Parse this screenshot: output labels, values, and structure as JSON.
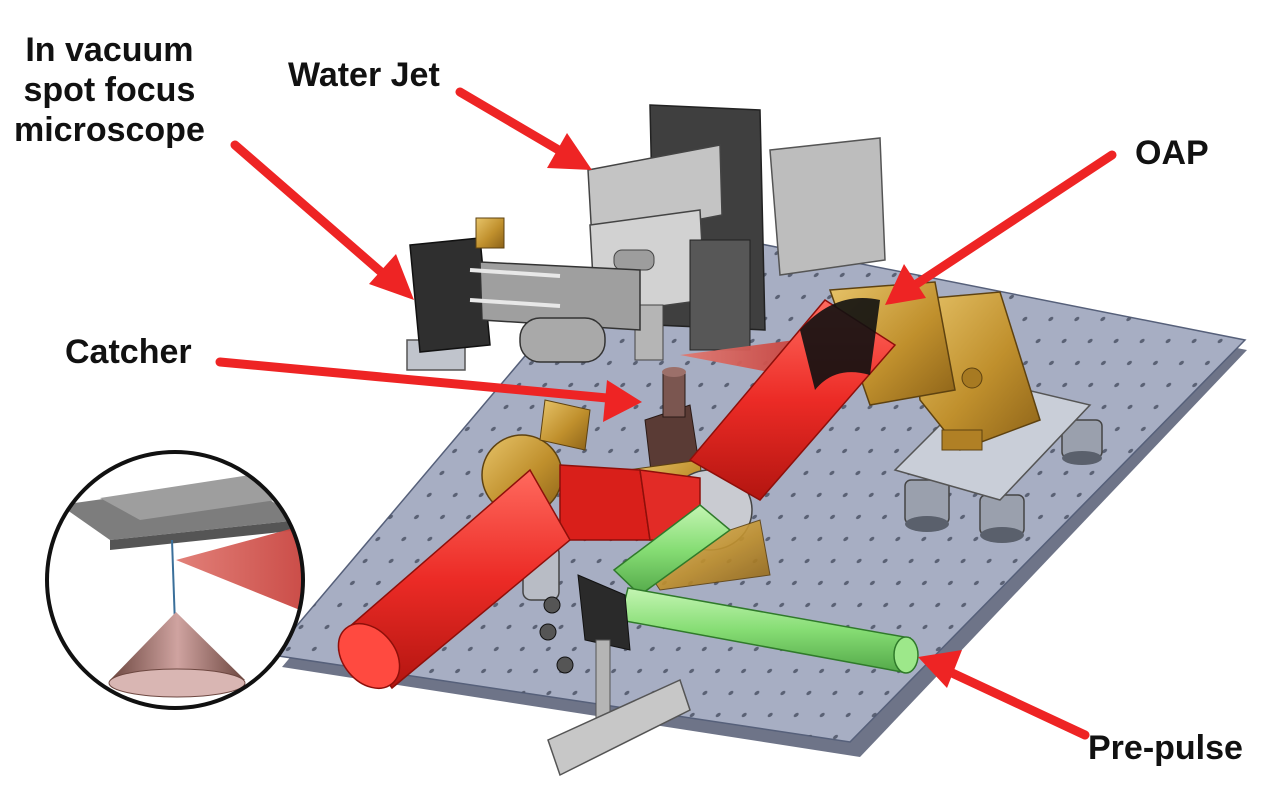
{
  "labels": {
    "microscope": "In vacuum\nspot focus\nmicroscope",
    "water_jet": "Water Jet",
    "oap": "OAP",
    "catcher": "Catcher",
    "pre_pulse": "Pre-pulse"
  },
  "colors": {
    "arrow": "#ee2424",
    "main_beam": "#ee2b2b",
    "pre_pulse_beam": "#88e07a",
    "breadboard": "#a7aec3",
    "gold_mounts": "#c89a35",
    "catcher_cone": "#8a5e58"
  }
}
